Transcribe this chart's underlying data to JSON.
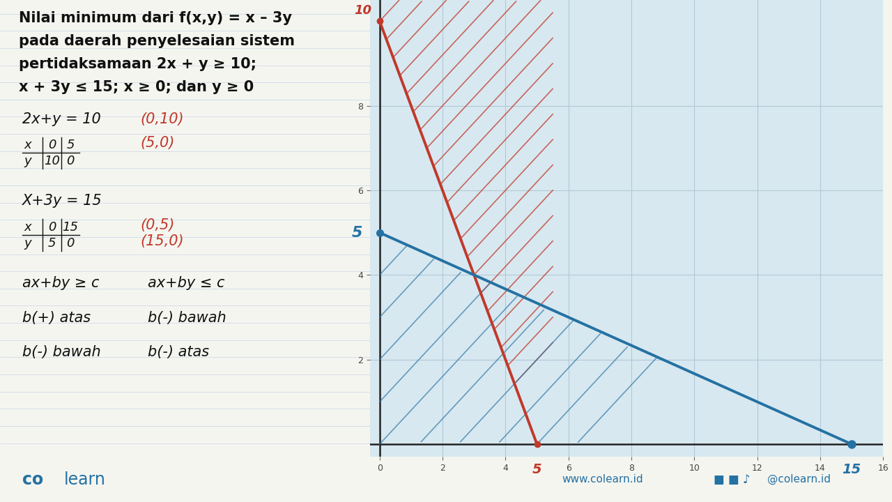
{
  "title_text_lines": [
    "Nilai minimum dari f(x,y) = x – 3y",
    "pada daerah penyelesaian sistem",
    "pertidaksamaan 2x + y ≥ 10;",
    "x + 3y ≤ 15; x ≥ 0; dan y ≥ 0"
  ],
  "left_panel_bg": "#f8f8f3",
  "graph_bg": "#d8e8f0",
  "grid_color": "#b0c8d8",
  "red_line_color": "#c0392b",
  "blue_line_color": "#2471a3",
  "xmax": 16,
  "ymin": -0.3,
  "ymax": 10.5,
  "footer_color": "#2471a3",
  "footer_left": "co learn",
  "footer_right": "www.colearn.id",
  "footer_social": "@colearn.id"
}
